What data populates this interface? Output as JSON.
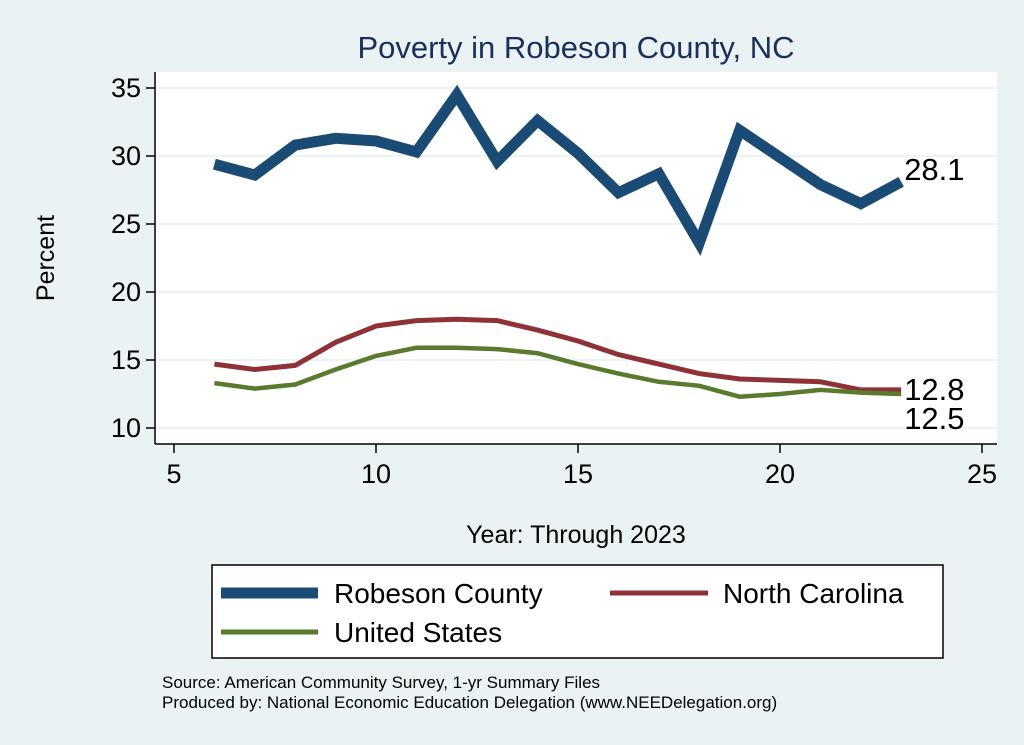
{
  "chart_data": {
    "type": "line",
    "title": "Poverty in Robeson County, NC",
    "xlabel": "Year: Through 2023",
    "ylabel": "Percent",
    "xlim": [
      5,
      25
    ],
    "ylim": [
      10,
      35
    ],
    "xticks": [
      5,
      10,
      15,
      20,
      25
    ],
    "yticks": [
      10,
      15,
      20,
      25,
      30,
      35
    ],
    "grid": true,
    "x": [
      6,
      7,
      8,
      9,
      10,
      11,
      12,
      13,
      14,
      15,
      16,
      17,
      18,
      19,
      20,
      21,
      22,
      23
    ],
    "series": [
      {
        "name": "Robeson County",
        "color": "#1a4b74",
        "values": [
          29.4,
          28.6,
          30.8,
          31.3,
          31.1,
          30.3,
          34.5,
          29.6,
          32.6,
          30.2,
          27.3,
          28.7,
          23.6,
          31.9,
          29.9,
          27.9,
          26.5,
          28.1
        ],
        "end_label": "28.1"
      },
      {
        "name": "North Carolina",
        "color": "#8f3237",
        "values": [
          14.7,
          14.3,
          14.6,
          16.3,
          17.5,
          17.9,
          18.0,
          17.9,
          17.2,
          16.4,
          15.4,
          14.7,
          14.0,
          13.6,
          13.5,
          13.4,
          12.8,
          12.8
        ],
        "end_label": "12.8"
      },
      {
        "name": "United States",
        "color": "#5a7a2e",
        "values": [
          13.3,
          12.9,
          13.2,
          14.3,
          15.3,
          15.9,
          15.9,
          15.8,
          15.5,
          14.7,
          14.0,
          13.4,
          13.1,
          12.3,
          12.5,
          12.8,
          12.6,
          12.5
        ],
        "end_label": "12.5"
      }
    ],
    "legend": {
      "placement": "bottom"
    },
    "notes": [
      "Source: American Community Survey, 1-yr Summary Files",
      "Produced by: National Economic Education Delegation (www.NEEDelegation.org)"
    ]
  }
}
